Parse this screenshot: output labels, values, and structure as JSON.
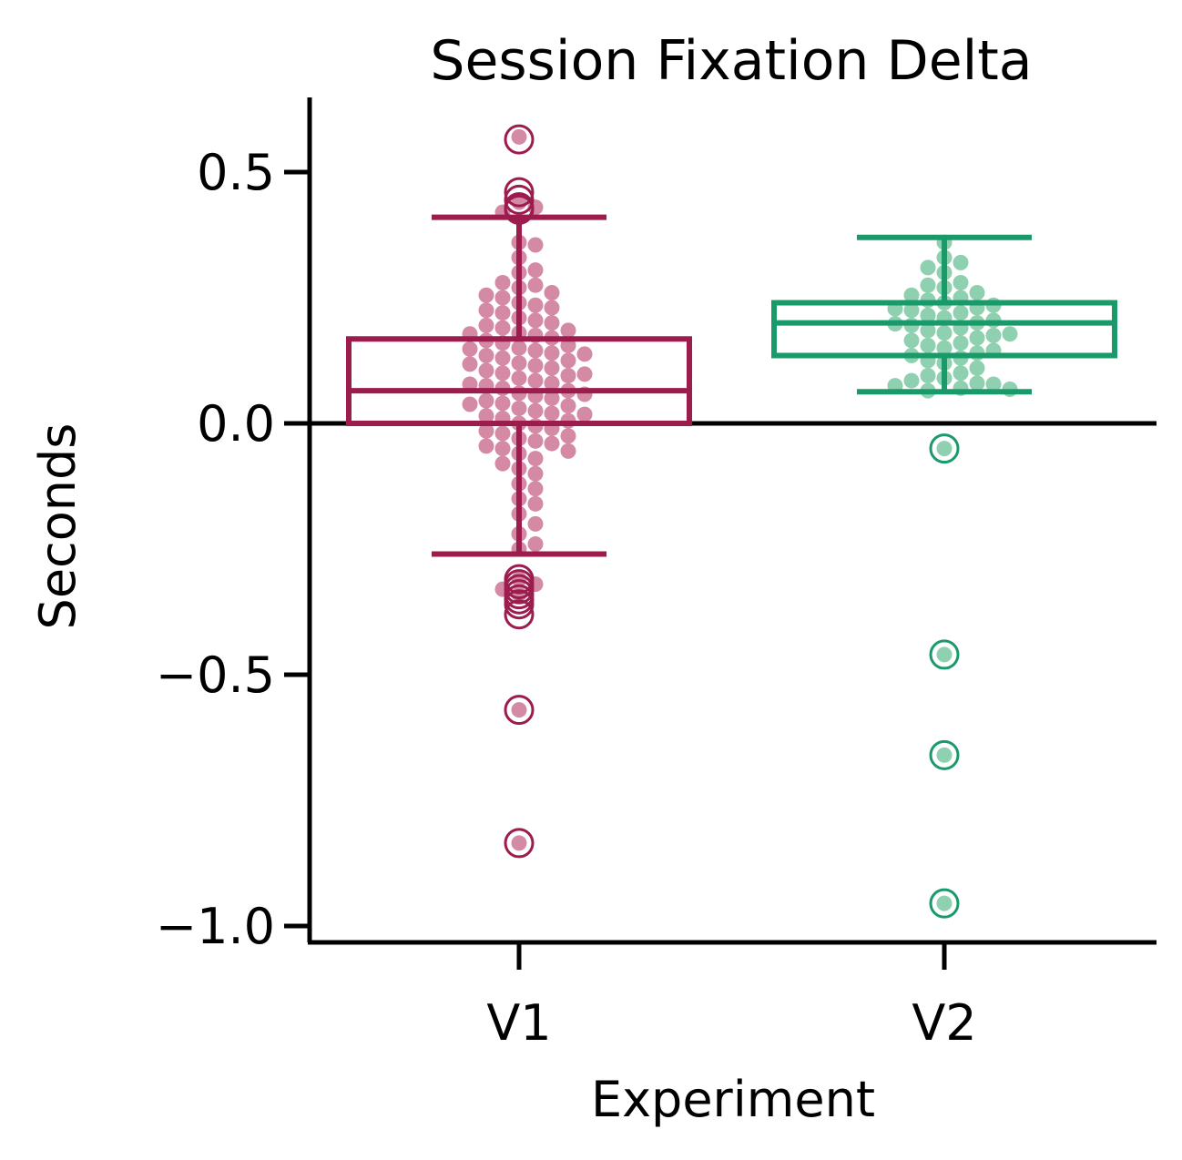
{
  "chart_data": {
    "type": "boxplot",
    "title": "Session Fixation Delta",
    "xlabel": "Experiment",
    "ylabel": "Seconds",
    "categories": [
      "V1",
      "V2"
    ],
    "ylim": [
      -1.03,
      0.65
    ],
    "yticks": [
      0.5,
      0.0,
      -0.5,
      -1.0
    ],
    "ytick_labels": [
      "0.5",
      "0.0",
      "−0.5",
      "−1.0"
    ],
    "reference_line": 0.0,
    "grid": false,
    "legend": "none",
    "colors": {
      "V1": "#9b1c4d",
      "V2": "#1a9a6a"
    },
    "point_colors": {
      "V1": "#d48aa5",
      "V2": "#8fd0b0"
    },
    "series": [
      {
        "category": "V1",
        "box": {
          "q1": 0.0,
          "median": 0.065,
          "q3": 0.168,
          "whisker_low": -0.26,
          "whisker_high": 0.41
        },
        "outliers": [
          0.565,
          0.46,
          0.445,
          0.43,
          0.425,
          -0.31,
          -0.32,
          -0.33,
          -0.34,
          -0.35,
          -0.36,
          -0.38,
          -0.57,
          -0.835
        ],
        "points": [
          0.57,
          0.44,
          0.42,
          0.43,
          0.36,
          0.355,
          0.33,
          0.3,
          0.305,
          0.28,
          0.275,
          0.27,
          0.255,
          0.26,
          0.25,
          0.24,
          0.235,
          0.23,
          0.225,
          0.22,
          0.21,
          0.205,
          0.2,
          0.195,
          0.19,
          0.185,
          0.18,
          0.178,
          0.175,
          0.17,
          0.165,
          0.16,
          0.155,
          0.15,
          0.148,
          0.145,
          0.14,
          0.138,
          0.135,
          0.13,
          0.125,
          0.12,
          0.118,
          0.115,
          0.11,
          0.105,
          0.1,
          0.098,
          0.095,
          0.09,
          0.085,
          0.08,
          0.078,
          0.075,
          0.07,
          0.065,
          0.06,
          0.058,
          0.055,
          0.05,
          0.045,
          0.04,
          0.038,
          0.035,
          0.03,
          0.025,
          0.02,
          0.018,
          0.015,
          0.01,
          0.005,
          0.0,
          -0.005,
          -0.01,
          -0.015,
          -0.02,
          -0.025,
          -0.03,
          -0.035,
          -0.04,
          -0.045,
          -0.05,
          -0.055,
          -0.06,
          -0.07,
          -0.08,
          -0.09,
          -0.1,
          -0.12,
          -0.13,
          -0.15,
          -0.16,
          -0.18,
          -0.2,
          -0.22,
          -0.24,
          -0.25,
          -0.31,
          -0.32,
          -0.33,
          -0.34,
          -0.57,
          -0.835
        ]
      },
      {
        "category": "V2",
        "box": {
          "q1": 0.135,
          "median": 0.2,
          "q3": 0.24,
          "whisker_low": 0.063,
          "whisker_high": 0.37
        },
        "outliers": [
          -0.05,
          -0.46,
          -0.66,
          -0.955
        ],
        "points": [
          0.36,
          0.33,
          0.32,
          0.31,
          0.3,
          0.28,
          0.275,
          0.27,
          0.26,
          0.255,
          0.25,
          0.245,
          0.24,
          0.235,
          0.23,
          0.228,
          0.225,
          0.22,
          0.215,
          0.21,
          0.205,
          0.2,
          0.198,
          0.195,
          0.19,
          0.185,
          0.18,
          0.178,
          0.175,
          0.17,
          0.165,
          0.16,
          0.155,
          0.15,
          0.145,
          0.14,
          0.135,
          0.13,
          0.125,
          0.12,
          0.11,
          0.1,
          0.095,
          0.09,
          0.085,
          0.08,
          0.078,
          0.075,
          0.07,
          0.068,
          0.065,
          -0.05,
          -0.46,
          -0.66,
          -0.955
        ]
      }
    ]
  }
}
